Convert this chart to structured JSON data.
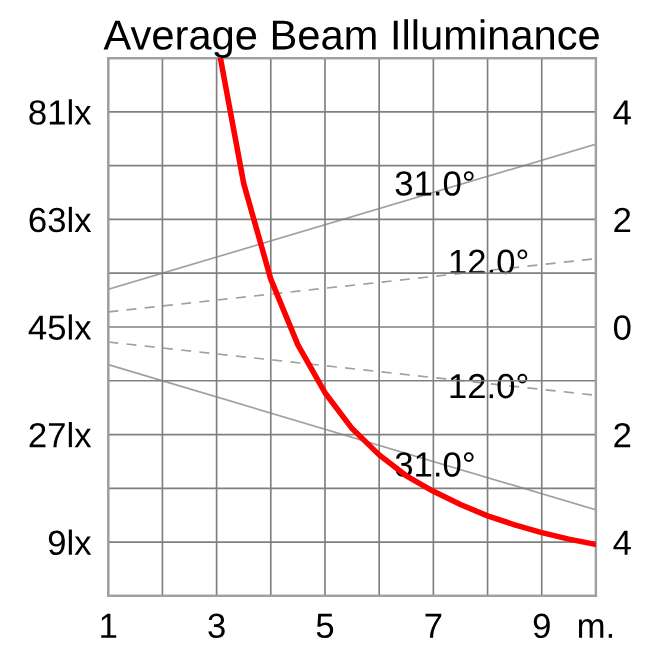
{
  "chart_data": {
    "type": "line",
    "title": "Average Beam Illuminance",
    "xlim": [
      1,
      10
    ],
    "xticks": [
      1,
      {
        "value": 2,
        "label": null
      },
      3,
      {
        "value": 4,
        "label": null
      },
      5,
      {
        "value": 6,
        "label": null
      },
      7,
      {
        "value": 8,
        "label": null
      },
      9,
      {
        "value": 10,
        "label": "m."
      }
    ],
    "ylim": [
      0,
      90
    ],
    "yticks": [
      {
        "value": 0,
        "label": null
      },
      {
        "value": 9,
        "label": "9lx"
      },
      {
        "value": 18,
        "label": null
      },
      {
        "value": 27,
        "label": "27lx"
      },
      {
        "value": 36,
        "label": null
      },
      {
        "value": 45,
        "label": "45lx"
      },
      {
        "value": 54,
        "label": null
      },
      {
        "value": 63,
        "label": "63lx"
      },
      {
        "value": 72,
        "label": null
      },
      {
        "value": 81,
        "label": "81lx"
      },
      {
        "value": 90,
        "label": null
      }
    ],
    "y2lim": [
      -5,
      5
    ],
    "y2ticks": [
      {
        "value": -4,
        "label": "4"
      },
      {
        "value": -2,
        "label": "2"
      },
      0,
      2,
      4
    ],
    "grid": true,
    "legend": false,
    "marker": "none",
    "series": [
      {
        "color": "#ff0000",
        "line_style": "solid",
        "x": [
          3.07,
          3.5,
          4,
          4.5,
          5,
          5.5,
          6,
          6.5,
          7,
          7.5,
          8,
          8.5,
          9,
          9.5,
          10
        ],
        "values": [
          90,
          69,
          53,
          42,
          34,
          28,
          23.6,
          20.1,
          17.5,
          15.3,
          13.4,
          11.9,
          10.6,
          9.5,
          8.6
        ]
      },
      {
        "name": "31.0°",
        "color": "#a0a0a0",
        "line_style": "solid",
        "axis": "y2",
        "x": [
          1,
          10
        ],
        "values": [
          0.7,
          3.4
        ]
      },
      {
        "name": "12.0°",
        "color": "#a0a0a0",
        "line_style": "dashed",
        "axis": "y2",
        "x": [
          1,
          10
        ],
        "values": [
          0.28,
          1.27
        ]
      },
      {
        "name": "12.0°",
        "color": "#a0a0a0",
        "line_style": "dashed",
        "axis": "y2",
        "x": [
          1,
          10
        ],
        "values": [
          -0.28,
          -1.27
        ]
      },
      {
        "name": "31.0°",
        "color": "#a0a0a0",
        "line_style": "solid",
        "axis": "y2",
        "x": [
          1,
          10
        ],
        "values": [
          -0.7,
          -3.4
        ]
      }
    ]
  }
}
